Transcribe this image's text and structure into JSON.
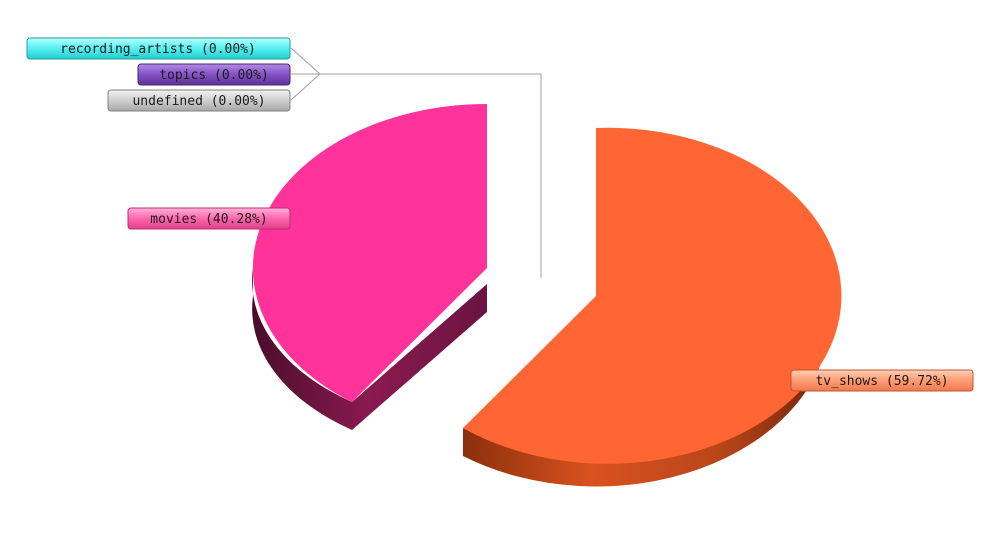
{
  "chart_data": {
    "type": "pie",
    "title": "",
    "three_d": true,
    "exploded": true,
    "legend": "none",
    "slices": [
      {
        "name": "tv_shows",
        "value": 59.72,
        "label": "tv_shows (59.72%)",
        "color": "#ff6633",
        "side_color": "#a83c14"
      },
      {
        "name": "movies",
        "value": 40.28,
        "label": "movies (40.28%)",
        "color": "#ff3399",
        "side_color": "#7a1848"
      },
      {
        "name": "recording_artists",
        "value": 0.0,
        "label": "recording_artists (0.00%)",
        "color": "#33e6e6",
        "side_color": "#1a9999"
      },
      {
        "name": "topics",
        "value": 0.0,
        "label": "topics (0.00%)",
        "color": "#7a44b8",
        "side_color": "#4a2470"
      },
      {
        "name": "undefined",
        "value": 0.0,
        "label": "undefined (0.00%)",
        "color": "#bdbdbd",
        "side_color": "#808080"
      }
    ]
  }
}
